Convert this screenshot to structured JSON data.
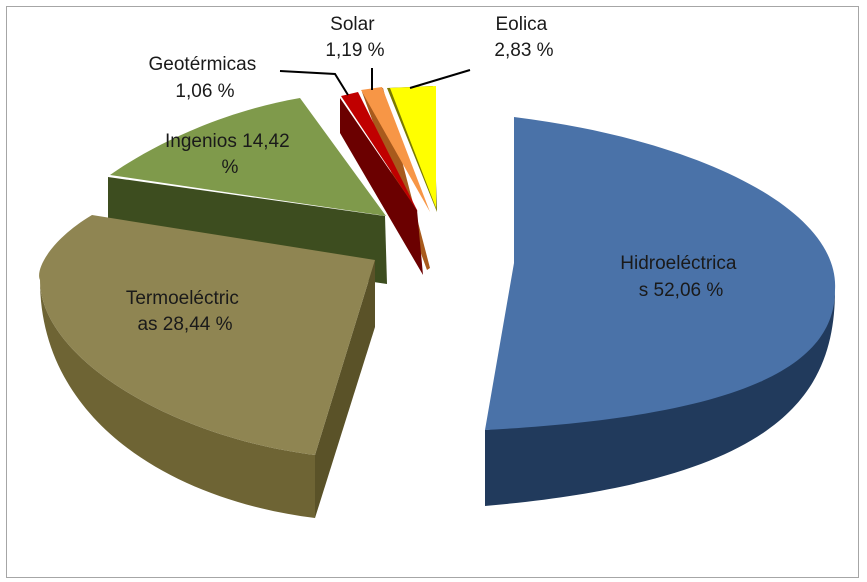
{
  "chart_data": {
    "type": "pie",
    "style": "3d-exploded",
    "slices": [
      {
        "name": "Hidroeléctricas",
        "value": 52.06,
        "label_lines": [
          "Hidroeléctrica",
          "s 52,06 %"
        ],
        "color": "#4a72a8"
      },
      {
        "name": "Termoeléctricas",
        "value": 28.44,
        "label_lines": [
          "Termoeléctric",
          "as 28,44 %"
        ],
        "color": "#8f8552"
      },
      {
        "name": "Ingenios",
        "value": 14.42,
        "label_lines": [
          "Ingenios 14,42",
          "%"
        ],
        "color": "#7f9a4b"
      },
      {
        "name": "Geotérmicas",
        "value": 1.06,
        "label_lines": [
          "Geotérmicas",
          "1,06 %"
        ],
        "color": "#c00000"
      },
      {
        "name": "Solar",
        "value": 1.19,
        "label_lines": [
          "Solar",
          "1,19 %"
        ],
        "color": "#f79646"
      },
      {
        "name": "Eolica",
        "value": 2.83,
        "label_lines": [
          "Eolica",
          "2,83 %"
        ],
        "color": "#ffff00"
      }
    ],
    "legend": "none"
  }
}
